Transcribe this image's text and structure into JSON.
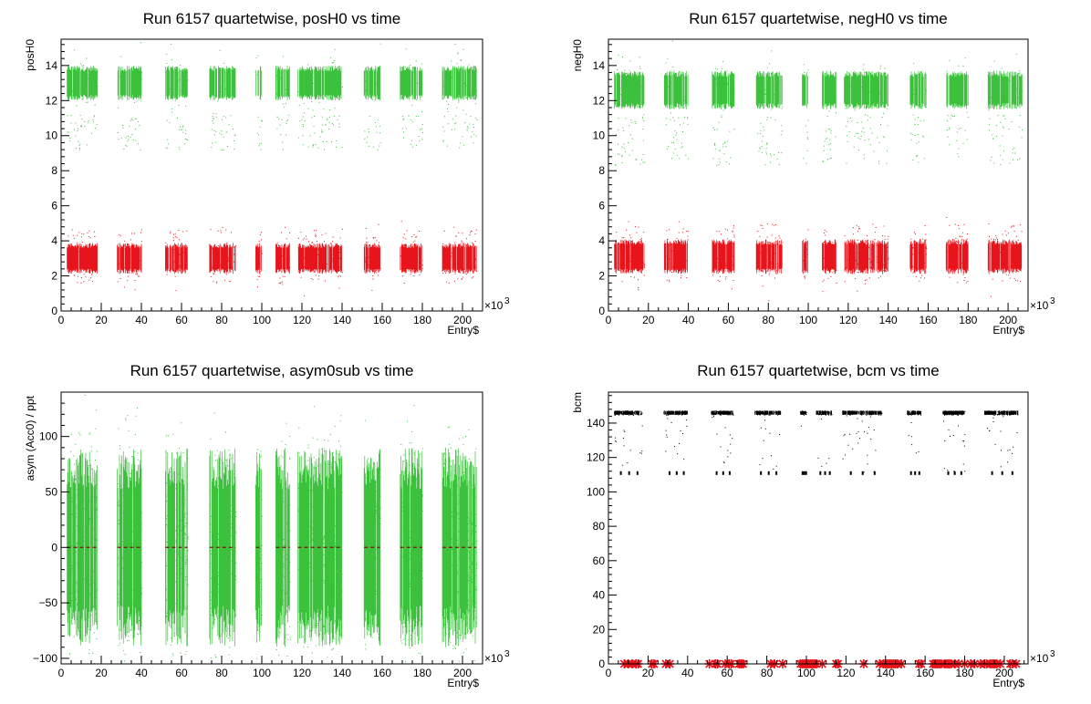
{
  "colors": {
    "green": "#3cc13c",
    "red": "#e8141b",
    "black": "#000000",
    "zero_line": "#7a1515"
  },
  "chart_data": [
    {
      "type": "scatter",
      "title": "Run 6157 quartetwise, posH0 vs time",
      "xlabel": "Entry$",
      "ylabel": "posH0",
      "x_multiplier_label": "×10",
      "x_multiplier_exp": "3",
      "xlim": [
        0,
        210
      ],
      "ylim": [
        0,
        15.5
      ],
      "xticks": [
        0,
        20,
        40,
        60,
        80,
        100,
        120,
        140,
        160,
        180,
        200
      ],
      "yticks": [
        0,
        2,
        4,
        6,
        8,
        10,
        12,
        14
      ],
      "x_units": "thousand entries",
      "segments_x": [
        [
          3,
          18
        ],
        [
          28,
          40
        ],
        [
          52,
          63
        ],
        [
          74,
          87
        ],
        [
          97,
          100
        ],
        [
          107,
          114
        ],
        [
          118,
          140
        ],
        [
          151,
          159
        ],
        [
          169,
          180
        ],
        [
          190,
          207
        ]
      ],
      "series": [
        {
          "color": "green",
          "band_center": 13.0,
          "band_half_width": 0.9,
          "outliers_y_range": [
            9.2,
            11.2
          ]
        },
        {
          "color": "red",
          "band_center": 3.0,
          "band_half_width": 0.8,
          "outliers_y_range": [
            1.6,
            4.7
          ]
        }
      ]
    },
    {
      "type": "scatter",
      "title": "Run 6157 quartetwise, negH0 vs time",
      "xlabel": "Entry$",
      "ylabel": "negH0",
      "x_multiplier_label": "×10",
      "x_multiplier_exp": "3",
      "xlim": [
        0,
        210
      ],
      "ylim": [
        0,
        15.5
      ],
      "xticks": [
        0,
        20,
        40,
        60,
        80,
        100,
        120,
        140,
        160,
        180,
        200
      ],
      "yticks": [
        0,
        2,
        4,
        6,
        8,
        10,
        12,
        14
      ],
      "x_units": "thousand entries",
      "segments_x": [
        [
          3,
          18
        ],
        [
          28,
          40
        ],
        [
          52,
          63
        ],
        [
          74,
          87
        ],
        [
          97,
          100
        ],
        [
          107,
          114
        ],
        [
          118,
          140
        ],
        [
          151,
          159
        ],
        [
          169,
          180
        ],
        [
          190,
          207
        ]
      ],
      "series": [
        {
          "color": "green",
          "band_center": 12.6,
          "band_half_width": 1.0,
          "outliers_y_range": [
            8.3,
            11.2
          ]
        },
        {
          "color": "red",
          "band_center": 3.1,
          "band_half_width": 0.9,
          "outliers_y_range": [
            1.7,
            5.0
          ]
        }
      ]
    },
    {
      "type": "scatter",
      "title": "Run 6157 quartetwise, asym0sub vs time",
      "xlabel": "Entry$",
      "ylabel": "asym (Acc0) / ppt",
      "x_multiplier_label": "×10",
      "x_multiplier_exp": "3",
      "xlim": [
        0,
        210
      ],
      "ylim": [
        -105,
        140
      ],
      "xticks": [
        0,
        20,
        40,
        60,
        80,
        100,
        120,
        140,
        160,
        180,
        200
      ],
      "yticks": [
        -100,
        -50,
        0,
        50,
        100
      ],
      "x_units": "thousand entries",
      "segments_x": [
        [
          3,
          18
        ],
        [
          28,
          40
        ],
        [
          52,
          63
        ],
        [
          74,
          87
        ],
        [
          97,
          100
        ],
        [
          107,
          114
        ],
        [
          118,
          140
        ],
        [
          151,
          159
        ],
        [
          169,
          180
        ],
        [
          190,
          207
        ]
      ],
      "series": [
        {
          "color": "green",
          "band_center": 0,
          "band_half_width": 120,
          "core_half_width": 75
        }
      ]
    },
    {
      "type": "scatter",
      "title": "Run 6157 quartetwise, bcm vs time",
      "xlabel": "Entry$",
      "ylabel": "bcm",
      "x_multiplier_label": "×10",
      "x_multiplier_exp": "3",
      "xlim": [
        0,
        212
      ],
      "ylim": [
        0,
        158
      ],
      "xticks": [
        0,
        20,
        40,
        60,
        80,
        100,
        120,
        140,
        160,
        180,
        200
      ],
      "yticks": [
        0,
        20,
        40,
        60,
        80,
        100,
        120,
        140
      ],
      "x_units": "thousand entries",
      "segments_x": [
        [
          3,
          17
        ],
        [
          28,
          40
        ],
        [
          52,
          63
        ],
        [
          74,
          87
        ],
        [
          97,
          100
        ],
        [
          105,
          113
        ],
        [
          118,
          138
        ],
        [
          151,
          158
        ],
        [
          169,
          180
        ],
        [
          190,
          207
        ]
      ],
      "series": [
        {
          "color": "black",
          "band_center": 146,
          "band_half_width": 1.2,
          "dropout_y_range": [
            111,
            145
          ]
        },
        {
          "color": "red",
          "marker": "star",
          "y": 0,
          "x": [
            8,
            10,
            12,
            14,
            15,
            22,
            23,
            29,
            31,
            51,
            54,
            55,
            59,
            61,
            62,
            66,
            67,
            68,
            82,
            84,
            88,
            97,
            98,
            99,
            100,
            101,
            102,
            103,
            104,
            105,
            108,
            115,
            116,
            129,
            137,
            139,
            140,
            141,
            142,
            143,
            144,
            145,
            146,
            148,
            157,
            158,
            164,
            165,
            166,
            167,
            168,
            170,
            171,
            172,
            173,
            175,
            177,
            180,
            183,
            185,
            188,
            190,
            191,
            193,
            194,
            195,
            196,
            198,
            203,
            204,
            206
          ]
        }
      ]
    }
  ]
}
